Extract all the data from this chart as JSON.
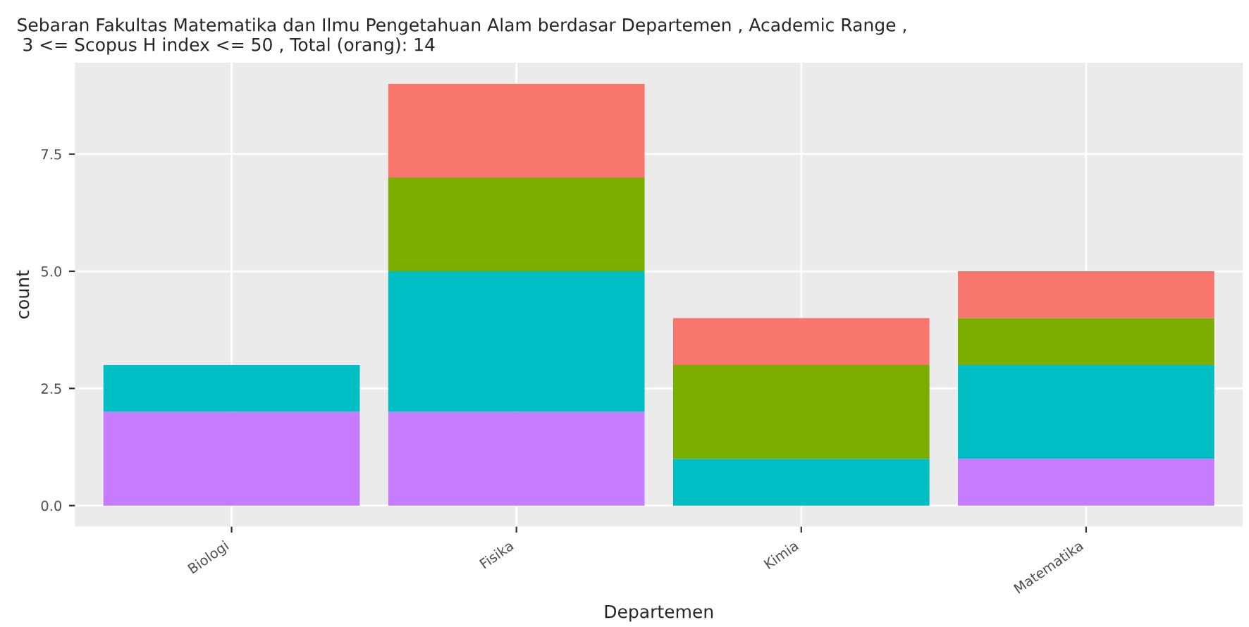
{
  "chart_data": {
    "type": "bar",
    "stacked": true,
    "title": "Sebaran Fakultas Matematika dan Ilmu Pengetahuan Alam berdasar Departemen , Academic Range ,\n 3 <= Scopus H index <= 50 , Total (orang): 14",
    "xlabel": "Departemen",
    "ylabel": "count",
    "categories": [
      "Biologi",
      "Fisika",
      "Kimia",
      "Matematika"
    ],
    "series": [
      {
        "color": "#c77cff",
        "values": [
          2,
          2,
          0,
          1
        ]
      },
      {
        "color": "#00bfc4",
        "values": [
          1,
          3,
          1,
          2
        ]
      },
      {
        "color": "#7cae00",
        "values": [
          0,
          2,
          2,
          1
        ]
      },
      {
        "color": "#f8766d",
        "values": [
          0,
          2,
          1,
          1
        ]
      }
    ],
    "ylim": [
      -0.45,
      9.45
    ],
    "yticks": [
      {
        "value": 0,
        "label": "0.0"
      },
      {
        "value": 2.5,
        "label": "2.5"
      },
      {
        "value": 5,
        "label": "5.0"
      },
      {
        "value": 7.5,
        "label": "7.5"
      }
    ],
    "grid": true,
    "legend": false
  }
}
